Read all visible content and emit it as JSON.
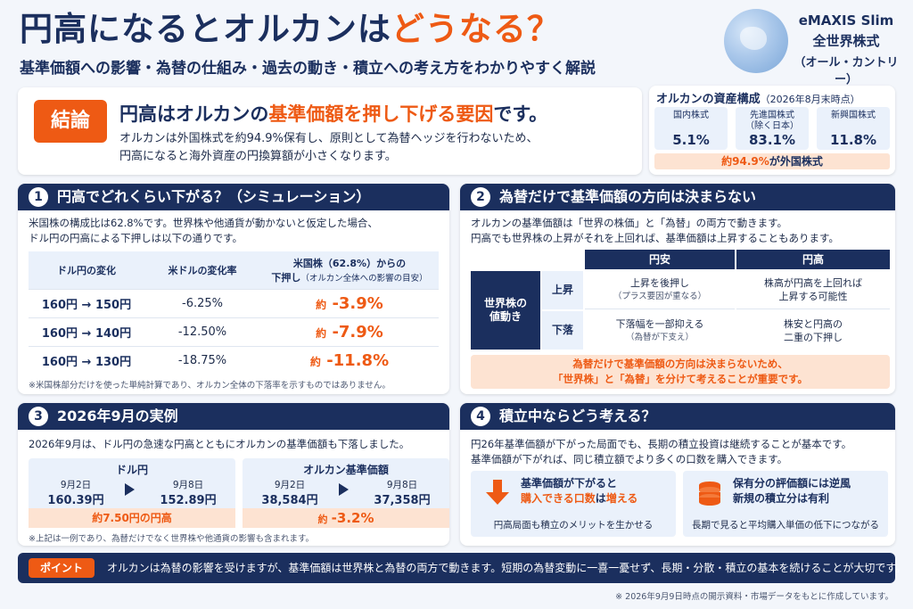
{
  "header": {
    "title_part1": "円高になるとオルカンは",
    "title_part2": "どうなる？",
    "subtitle": "基準価額への影響・為替の仕組み・過去の動き・積立への考え方をわかりやすく解説"
  },
  "brand": {
    "line1": "eMAXIS Slim",
    "line2": "全世界株式",
    "line3": "（オール・カントリー）"
  },
  "conclusion": {
    "tag": "結論",
    "head_part1": "円高はオルカンの",
    "head_part2": "基準価額を押し下げる要因",
    "head_part3": "です。",
    "body_line1": "オルカンは外国株式を約94.9%保有し、原則として為替ヘッジを行わないため、",
    "body_line2": "円高になると海外資産の円換算額が小さくなります。"
  },
  "assets": {
    "title": "オルカンの資産構成",
    "title_note": "（2026年8月末時点）",
    "items": [
      {
        "name_line1": "国内株式",
        "name_line2": "",
        "value": "5.1%"
      },
      {
        "name_line1": "先進国株式",
        "name_line2": "（除く日本）",
        "value": "83.1%"
      },
      {
        "name_line1": "新興国株式",
        "name_line2": "",
        "value": "11.8%"
      }
    ],
    "foot_part1": "約94.9%",
    "foot_part2": "が外国株式"
  },
  "section1": {
    "num": "1",
    "title": "円高でどれくらい下がる？（シミュレーション）",
    "text_line1": "米国株の構成比は62.8%です。世界株や他通貨が動かないと仮定した場合、",
    "text_line2": "ドル円の円高による下押しは以下の通りです。",
    "headers": {
      "col1": "ドル円の変化",
      "col2": "米ドルの変化率",
      "col3_line1": "米国株（62.8%）からの",
      "col3_line2": "下押し",
      "col3_note": "（オルカン全体への影響の目安）"
    },
    "rows": [
      {
        "change": "160円 → 150円",
        "rate": "-6.25%",
        "prefix": "約",
        "impact": "-3.9%"
      },
      {
        "change": "160円 → 140円",
        "rate": "-12.50%",
        "prefix": "約",
        "impact": "-7.9%"
      },
      {
        "change": "160円 → 130円",
        "rate": "-18.75%",
        "prefix": "約",
        "impact": "-11.8%"
      }
    ],
    "note": "※米国株部分だけを使った単純計算であり、オルカン全体の下落率を示すものではありません。"
  },
  "section2": {
    "num": "2",
    "title": "為替だけで基準価額の方向は決まらない",
    "text_line1": "オルカンの基準価額は「世界の株価」と「為替」の両方で動きます。",
    "text_line2": "円高でも世界株の上昇がそれを上回れば、基準価額は上昇することもあります。",
    "col_weak": "円安",
    "col_strong": "円高",
    "row_label_line1": "世界株の",
    "row_label_line2": "値動き",
    "row_up": "上昇",
    "row_down": "下落",
    "up_weak_line1": "上昇を後押し",
    "up_weak_line2": "（プラス要因が重なる）",
    "up_strong_line1": "株高が円高を上回れば",
    "up_strong_line2": "上昇する可能性",
    "down_weak_line1": "下落幅を一部抑える",
    "down_weak_line2": "（為替が下支え）",
    "down_strong_line1": "株安と円高の",
    "down_strong_line2": "二重の下押し",
    "callout_line1": "為替だけで基準価額の方向は決まらないため、",
    "callout_line2": "「世界株」と「為替」を分けて考えることが重要です。"
  },
  "section3": {
    "num": "3",
    "title": "2026年9月の実例",
    "text": "2026年9月は、ドル円の急速な円高とともにオルカンの基準価額も下落しました。",
    "usd": {
      "title": "ドル円",
      "date1": "9月2日",
      "value1": "160.39円",
      "date2": "9月8日",
      "value2": "152.89円",
      "foot": "約7.50円の円高"
    },
    "nav": {
      "title": "オルカン基準価額",
      "date1": "9月2日",
      "value1": "38,584円",
      "date2": "9月8日",
      "value2": "37,358円",
      "foot_prefix": "約",
      "foot": "-3.2%"
    },
    "note": "※上記は一例であり、為替だけでなく世界株や他通貨の影響も含まれます。"
  },
  "section4": {
    "num": "4",
    "title": "積立中ならどう考える？",
    "text_line1": "円26年基準価額が下がった局面でも、長期の積立投資は継続することが基本です。",
    "text_line2": "基準価額が下がれば、同じ積立額でより多くの口数を購入できます。",
    "box1_line1": "基準価額が下がると",
    "box1_line2a": "購入できる口数",
    "box1_line2b": "は",
    "box1_line2c": "増える",
    "box1_foot": "円高局面も積立のメリットを生かせる",
    "box2_line1": "保有分の評価額には逆風",
    "box2_line2": "新規の積立分は有利",
    "box2_foot": "長期で見ると平均購入単価の低下につながる"
  },
  "point": {
    "tag": "ポイント",
    "text": "オルカンは為替の影響を受けますが、基準価額は世界株と為替の両方で動きます。短期の為替変動に一喜一憂せず、長期・分散・積立の基本を続けることが大切です。"
  },
  "footnote": "※ 2026年9月9日時点の開示資料・市場データをもとに作成しています。"
}
